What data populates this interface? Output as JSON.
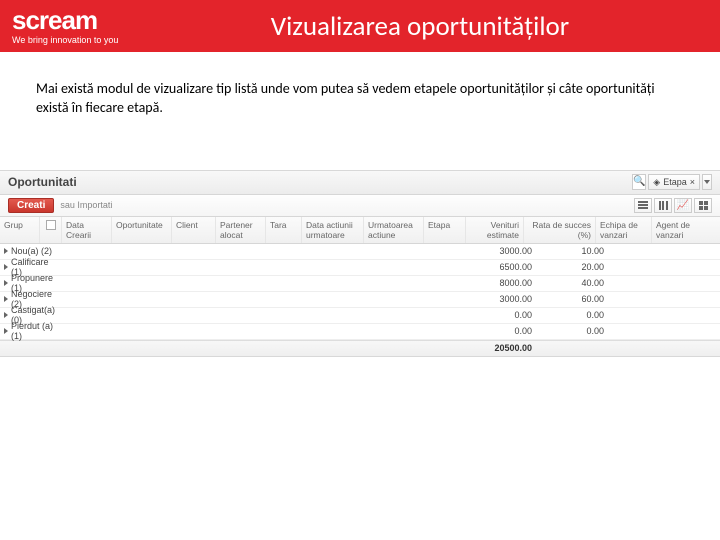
{
  "brand": {
    "name": "scream",
    "tagline": "We bring innovation to you",
    "bg_color": "#e3242b"
  },
  "slide": {
    "title": "Vizualizarea oportunităților",
    "body": "Mai există modul de vizualizare tip listă unde vom putea să vedem etapele oportunităților și câte oportunități există în fiecare etapă."
  },
  "crm": {
    "title": "Oportunitati",
    "filter_label": "Etapa",
    "create_label": "Creati",
    "import_label": "sau Importati",
    "columns": {
      "grup": "Grup",
      "data_crearii": "Data Crearii",
      "oportunitate": "Oportunitate",
      "client": "Client",
      "partener_alocat": "Partener alocat",
      "tara": "Tara",
      "data_actiunii": "Data actiunii urmatoare",
      "urmatoarea": "Urmatoarea actiune",
      "etapa": "Etapa",
      "venituri": "Venituri estimate",
      "rata": "Rata de succes (%)",
      "echipa": "Echipa de vanzari",
      "agent": "Agent de vanzari"
    },
    "groups": [
      {
        "label": "Nou(a) (2)",
        "venituri": "3000.00",
        "rata": "10.00"
      },
      {
        "label": "Calificare (1)",
        "venituri": "6500.00",
        "rata": "20.00"
      },
      {
        "label": "Propunere (1)",
        "venituri": "8000.00",
        "rata": "40.00"
      },
      {
        "label": "Negociere (2)",
        "venituri": "3000.00",
        "rata": "60.00"
      },
      {
        "label": "Castigat(a) (0)",
        "venituri": "0.00",
        "rata": "0.00"
      },
      {
        "label": "Pierdut (a) (1)",
        "venituri": "0.00",
        "rata": "0.00"
      }
    ],
    "total": {
      "venituri": "20500.00"
    }
  }
}
